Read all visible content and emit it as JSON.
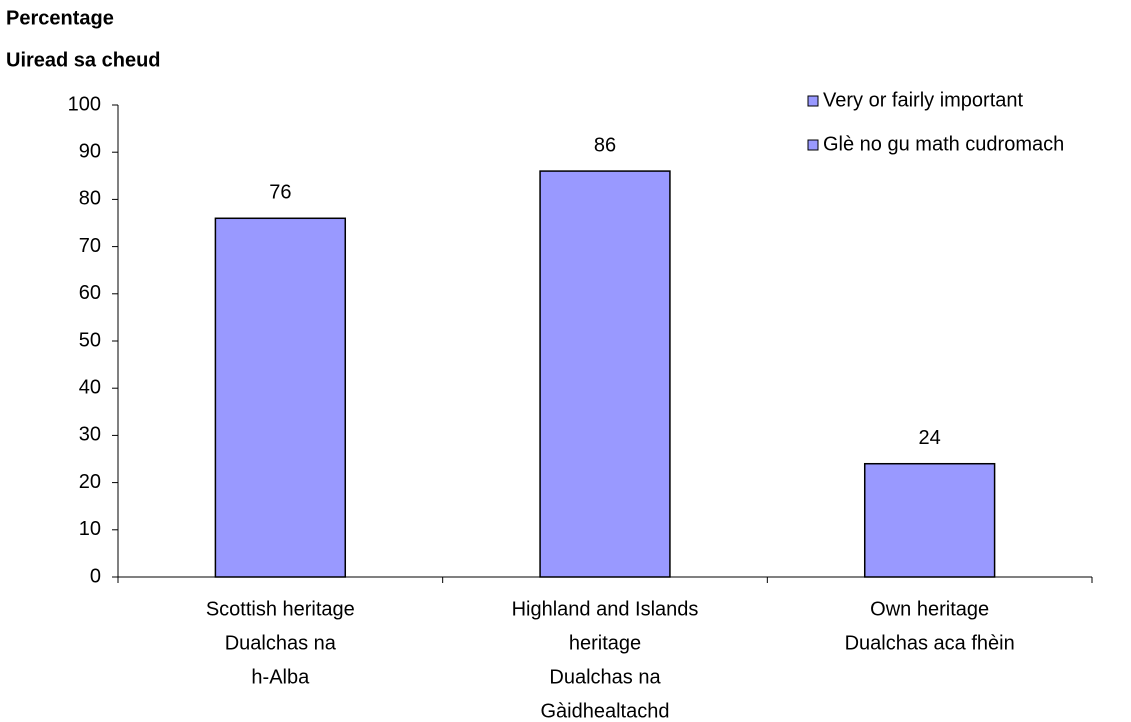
{
  "chart_data": {
    "type": "bar",
    "y_label": [
      "Percentage",
      "Uiread sa cheud"
    ],
    "categories": [
      [
        "Scottish heritage",
        "Dualchas na",
        "h-Alba"
      ],
      [
        "Highland and Islands",
        "heritage",
        "Dualchas na",
        "Gàidhealtachd"
      ],
      [
        "Own heritage",
        "Dualchas aca fhèin"
      ]
    ],
    "series": [
      {
        "name": [
          "Very or fairly important",
          "Glè no gu math cudromach"
        ],
        "color": "#9999ff",
        "values": [
          76,
          86,
          24
        ]
      }
    ],
    "ylim": [
      0,
      100
    ],
    "yticks": [
      0,
      10,
      20,
      30,
      40,
      50,
      60,
      70,
      80,
      90,
      100
    ],
    "legend": "top-right",
    "grid": false
  }
}
